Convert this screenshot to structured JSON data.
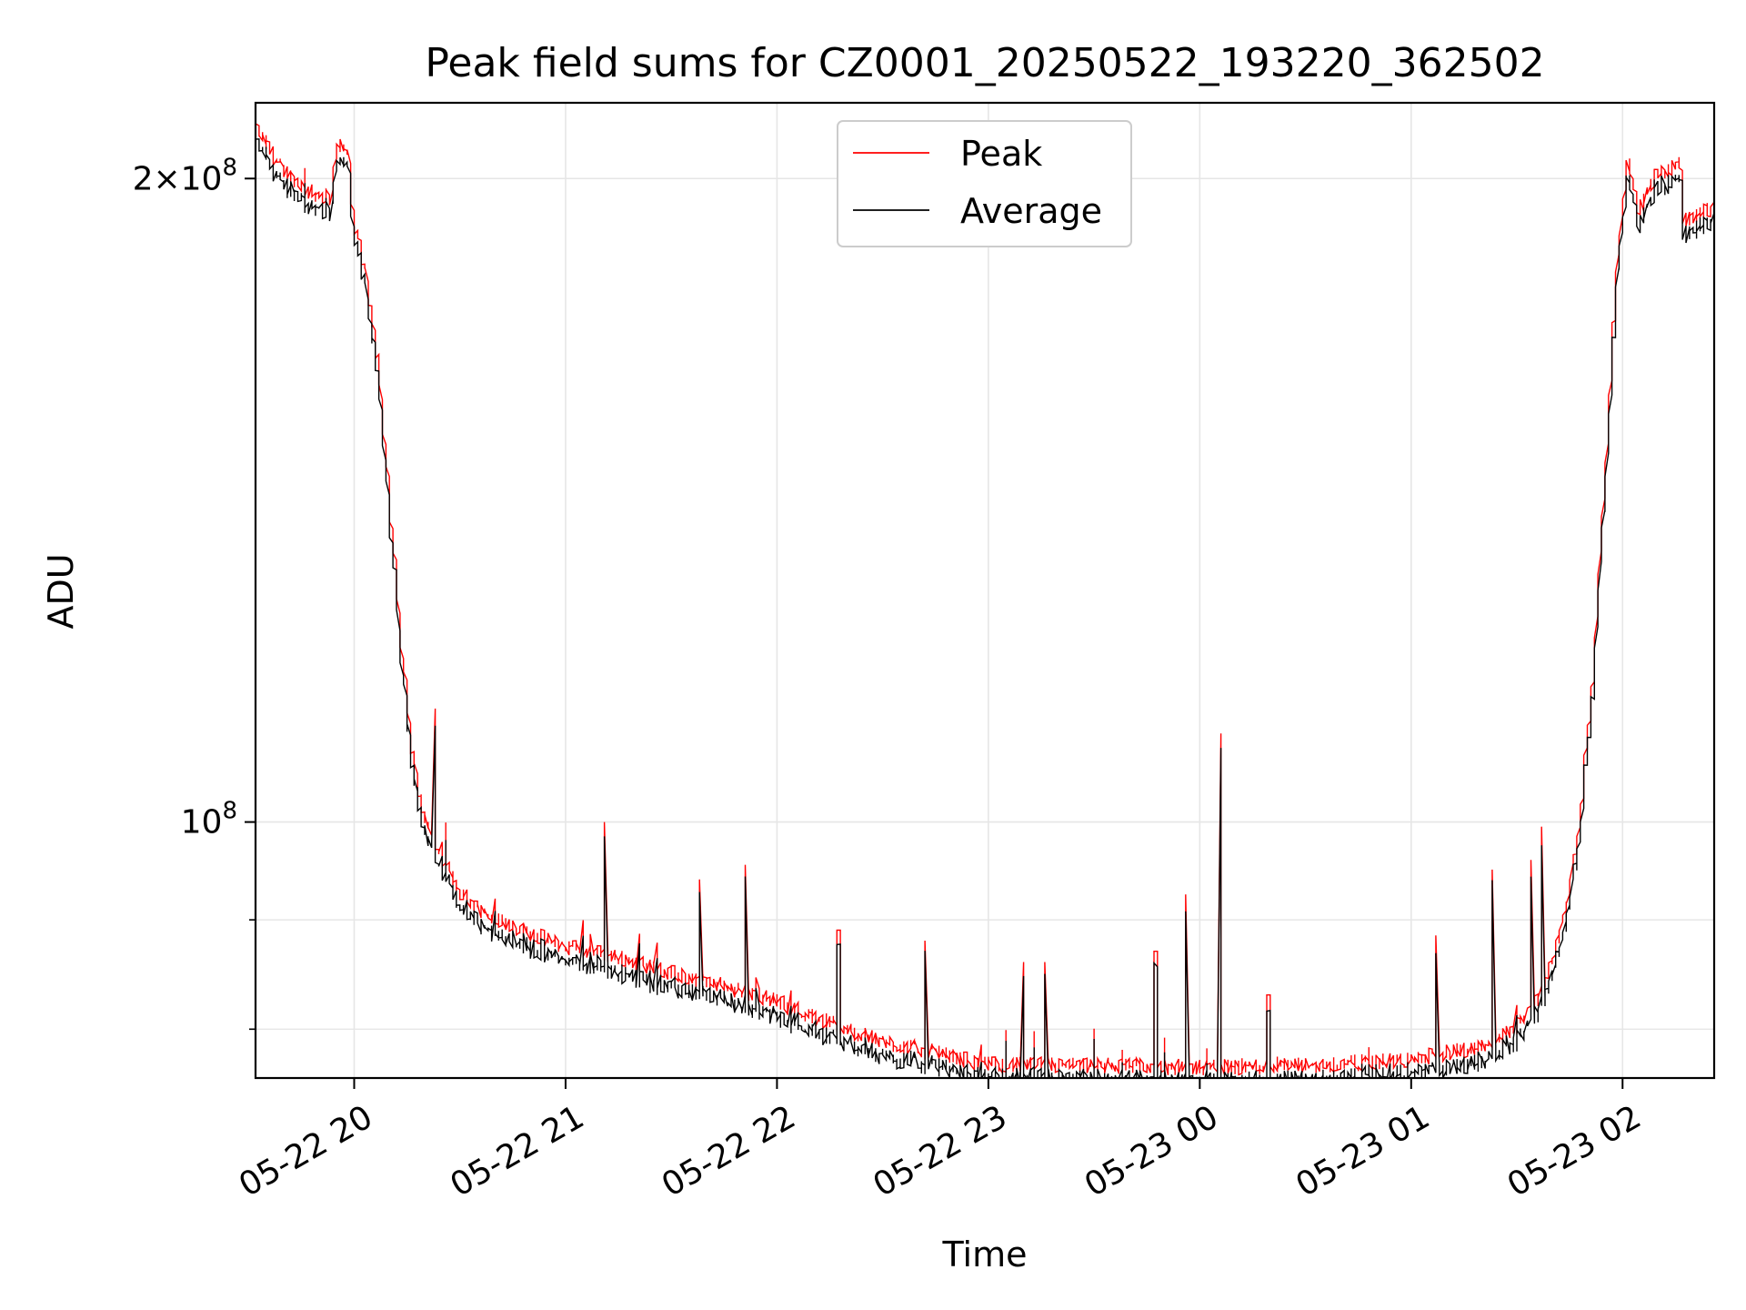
{
  "chart_data": {
    "type": "line",
    "title": "Peak field sums for CZ0001_20250522_193220_362502",
    "xlabel": "Time",
    "ylabel": "ADU",
    "yscale": "log",
    "xlim": [
      "2025-05-22 19:32",
      "2025-05-23 02:26"
    ],
    "ylim": [
      75900000,
      217000000
    ],
    "x_ticks": [
      {
        "value": "2025-05-22 20:00",
        "label": "05-22 20"
      },
      {
        "value": "2025-05-22 21:00",
        "label": "05-22 21"
      },
      {
        "value": "2025-05-22 22:00",
        "label": "05-22 22"
      },
      {
        "value": "2025-05-22 23:00",
        "label": "05-22 23"
      },
      {
        "value": "2025-05-23 00:00",
        "label": "05-23 00"
      },
      {
        "value": "2025-05-23 01:00",
        "label": "05-23 01"
      },
      {
        "value": "2025-05-23 02:00",
        "label": "05-23 02"
      }
    ],
    "y_major_ticks": [
      {
        "value": 100000000,
        "base": "10",
        "exp": "8",
        "coef": ""
      },
      {
        "value": 200000000,
        "base": "10",
        "exp": "8",
        "coef": "2"
      }
    ],
    "y_minor_ticks": [
      80000000,
      90000000
    ],
    "grid": true,
    "legend": {
      "position": "upper center",
      "entries": [
        "Peak",
        "Average"
      ]
    },
    "series": [
      {
        "name": "Peak",
        "color": "#ff0000",
        "x": [
          "2025-05-22 19:32",
          "2025-05-22 19:40",
          "2025-05-22 19:48",
          "2025-05-22 19:54",
          "2025-05-22 19:56",
          "2025-05-22 19:59",
          "2025-05-22 20:00",
          "2025-05-22 20:04",
          "2025-05-22 20:08",
          "2025-05-22 20:12",
          "2025-05-22 20:16",
          "2025-05-22 20:20",
          "2025-05-22 20:25",
          "2025-05-22 20:30",
          "2025-05-22 20:36",
          "2025-05-22 20:45",
          "2025-05-22 21:00",
          "2025-05-22 21:15",
          "2025-05-22 21:30",
          "2025-05-22 21:45",
          "2025-05-22 22:00",
          "2025-05-22 22:15",
          "2025-05-22 22:30",
          "2025-05-22 22:45",
          "2025-05-22 23:00",
          "2025-05-22 23:30",
          "2025-05-23 00:00",
          "2025-05-23 00:30",
          "2025-05-23 01:00",
          "2025-05-23 01:20",
          "2025-05-23 01:30",
          "2025-05-23 01:38",
          "2025-05-23 01:44",
          "2025-05-23 01:48",
          "2025-05-23 01:52",
          "2025-05-23 01:56",
          "2025-05-23 01:58",
          "2025-05-23 02:00",
          "2025-05-23 02:02",
          "2025-05-23 02:05",
          "2025-05-23 02:10",
          "2025-05-23 02:17",
          "2025-05-23 02:18",
          "2025-05-23 02:26"
        ],
        "y": [
          212000000,
          202000000,
          197000000,
          196000000,
          208000000,
          205000000,
          193000000,
          180000000,
          160000000,
          132000000,
          111000000,
          101000000,
          96500000,
          93000000,
          91000000,
          89500000,
          87500000,
          86500000,
          85000000,
          83800000,
          82500000,
          80500000,
          79000000,
          78000000,
          77000000,
          76900000,
          76800000,
          76900000,
          77400000,
          78500000,
          80000000,
          83500000,
          90000000,
          99000000,
          116000000,
          149000000,
          172000000,
          190000000,
          204000000,
          193000000,
          201000000,
          203000000,
          191000000,
          194000000
        ],
        "spikes": [
          {
            "x": "2025-05-22 20:23",
            "y": 113000000
          },
          {
            "x": "2025-05-22 21:12",
            "y": 100000000
          },
          {
            "x": "2025-05-22 21:39",
            "y": 94000000
          },
          {
            "x": "2025-05-22 21:52",
            "y": 95500000
          },
          {
            "x": "2025-05-22 22:18",
            "y": 89000000
          },
          {
            "x": "2025-05-22 22:43",
            "y": 88000000
          },
          {
            "x": "2025-05-22 23:10",
            "y": 86000000
          },
          {
            "x": "2025-05-22 23:17",
            "y": 86000000
          },
          {
            "x": "2025-05-22 23:48",
            "y": 87000000
          },
          {
            "x": "2025-05-22 23:57",
            "y": 92500000
          },
          {
            "x": "2025-05-23 00:06",
            "y": 110000000
          },
          {
            "x": "2025-05-23 00:20",
            "y": 83000000
          },
          {
            "x": "2025-05-23 01:08",
            "y": 88500000
          },
          {
            "x": "2025-05-23 01:24",
            "y": 95000000
          },
          {
            "x": "2025-05-23 01:35",
            "y": 96000000
          },
          {
            "x": "2025-05-23 01:38",
            "y": 99500000
          }
        ]
      },
      {
        "name": "Average",
        "color": "#000000",
        "offset_ratio": 0.985
      }
    ]
  }
}
